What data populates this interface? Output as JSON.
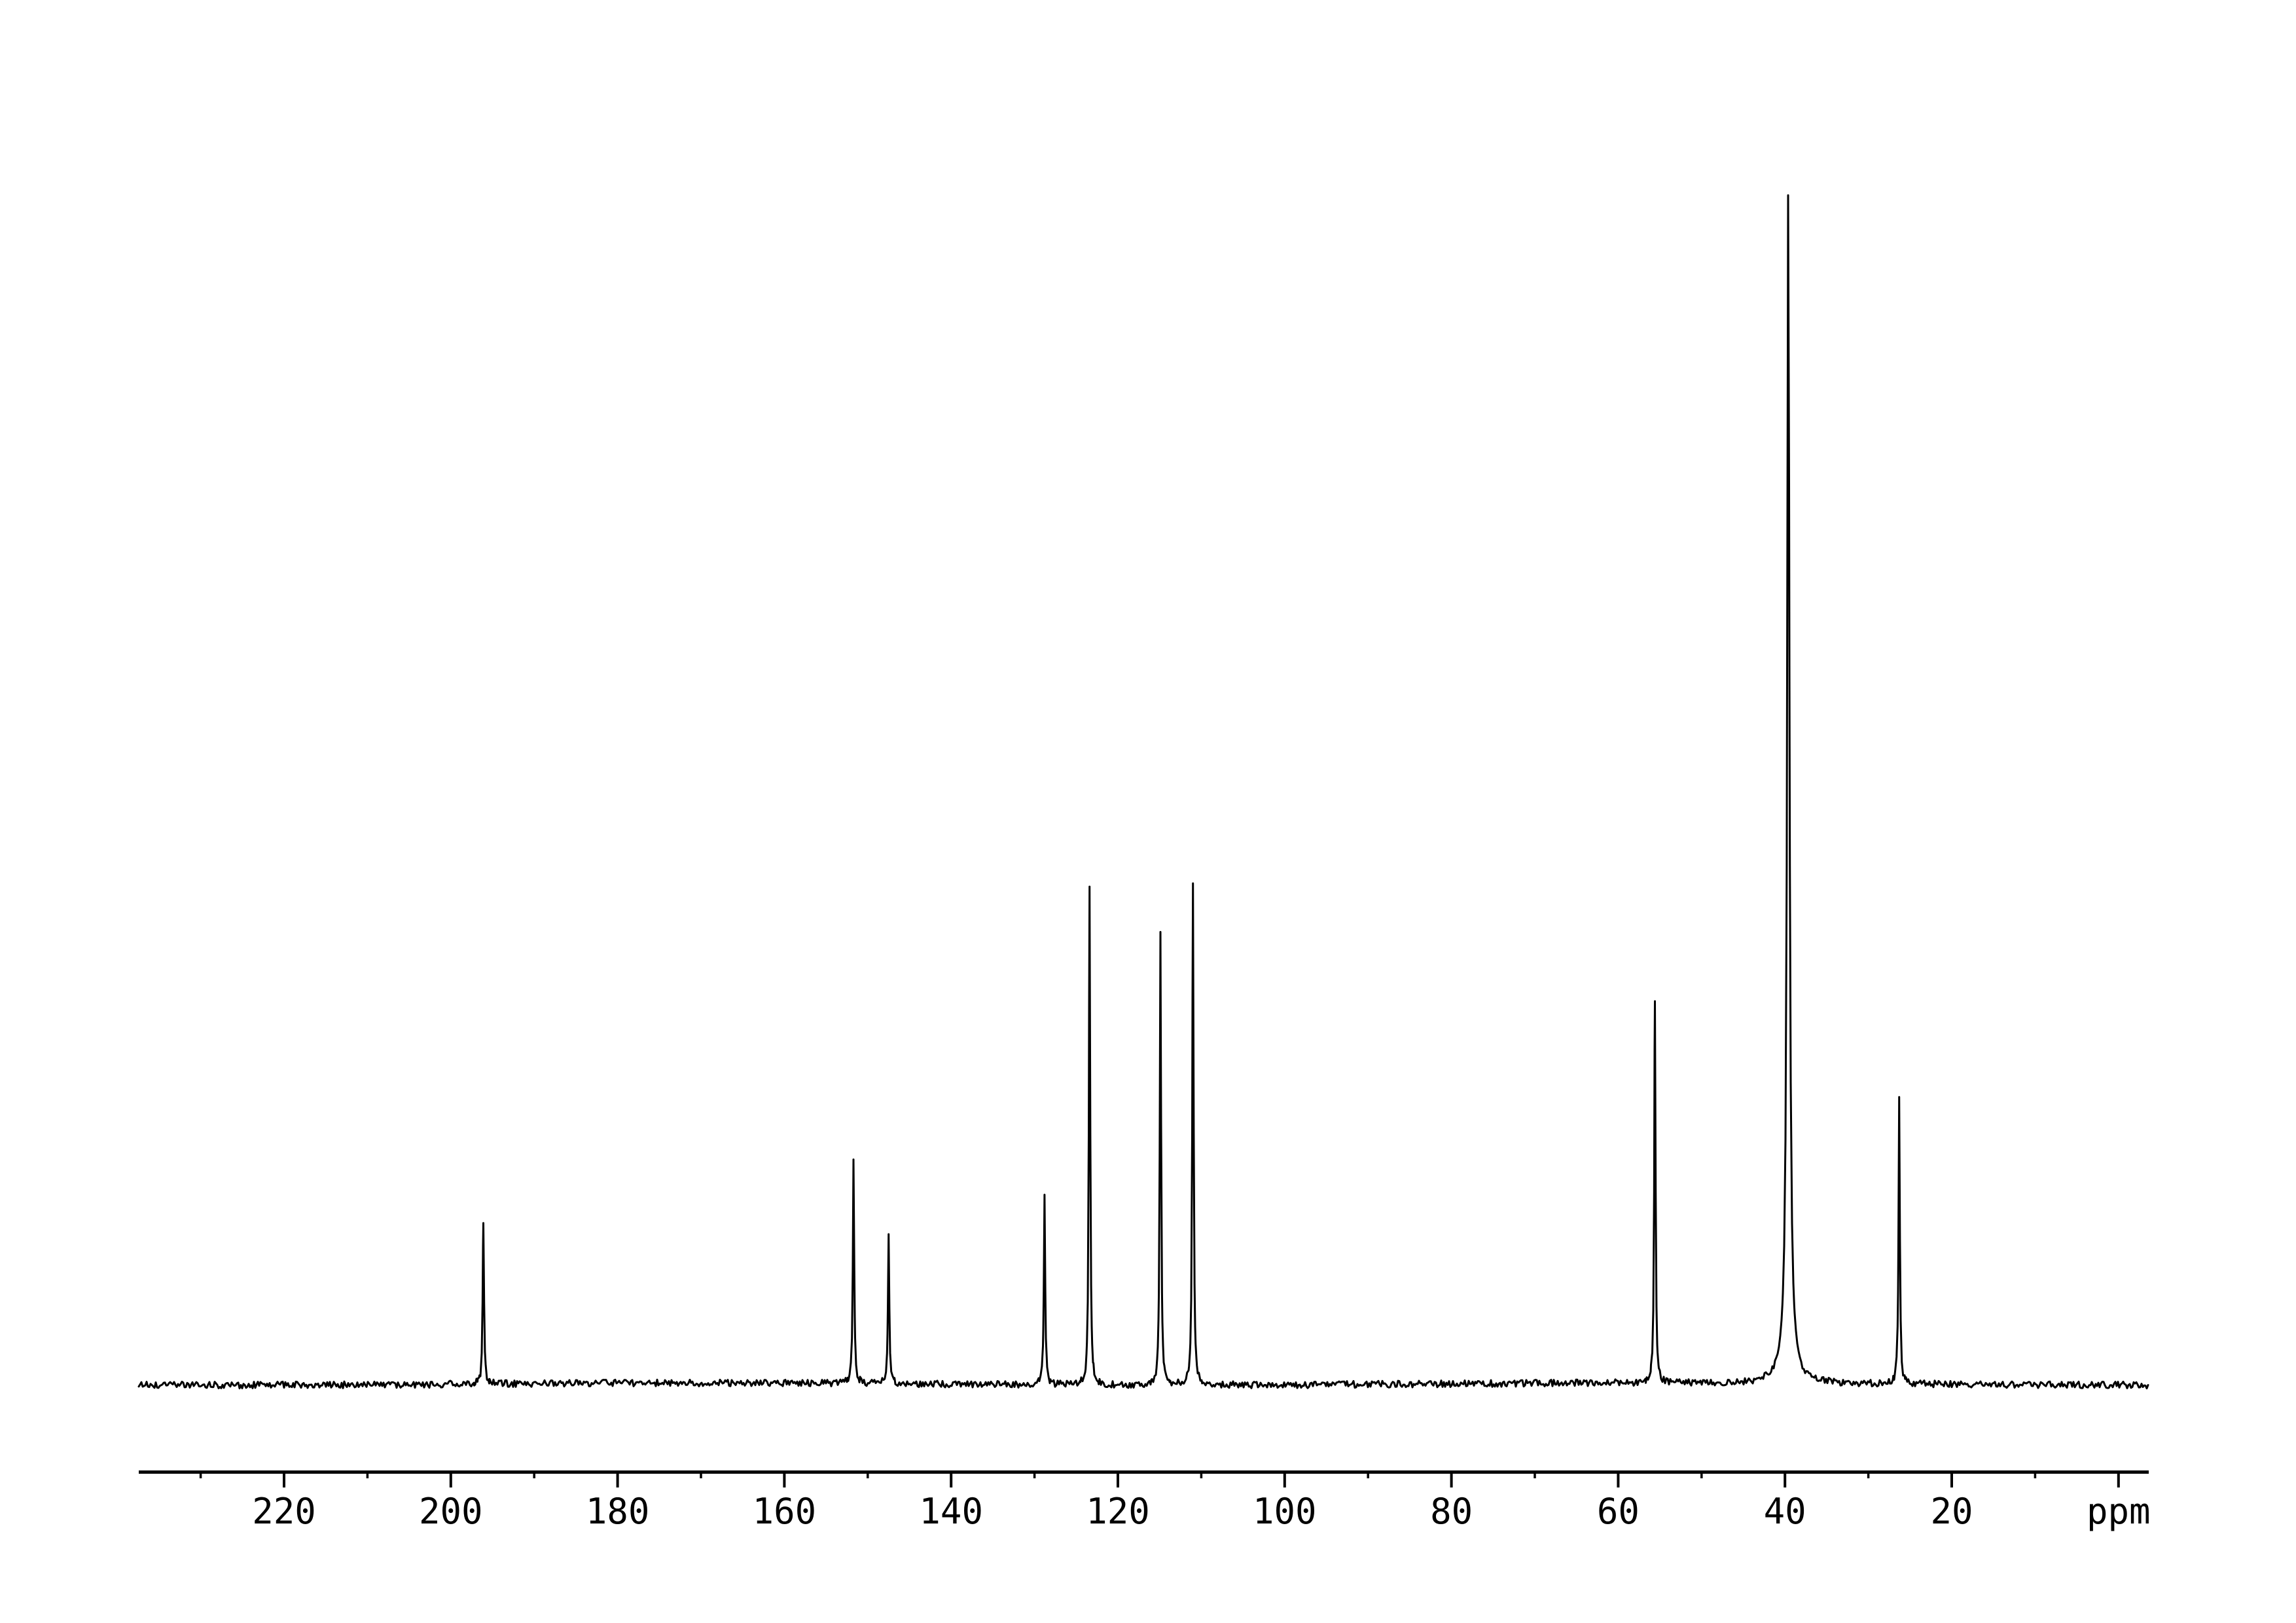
{
  "figure": {
    "background_color": "#ffffff",
    "trace_color": "#000000",
    "axis_color": "#000000"
  },
  "chart_data": {
    "type": "line",
    "subtype": "13C NMR spectrum trace",
    "xlabel": "ppm",
    "x_axis_reversed": true,
    "x_range_ppm": [
      237,
      -4
    ],
    "grid": "off",
    "legend": "none",
    "ticks": [
      {
        "ppm": 220,
        "label": "220"
      },
      {
        "ppm": 200,
        "label": "200"
      },
      {
        "ppm": 180,
        "label": "180"
      },
      {
        "ppm": 160,
        "label": "160"
      },
      {
        "ppm": 140,
        "label": "140"
      },
      {
        "ppm": 120,
        "label": "120"
      },
      {
        "ppm": 100,
        "label": "100"
      },
      {
        "ppm": 80,
        "label": "80"
      },
      {
        "ppm": 60,
        "label": "60"
      },
      {
        "ppm": 40,
        "label": "40"
      },
      {
        "ppm": 20,
        "label": "20"
      },
      {
        "ppm": 0,
        "label": "ppm"
      }
    ],
    "minor_ticks_ppm": [
      230,
      210,
      190,
      170,
      150,
      130,
      110,
      90,
      70,
      50,
      30,
      10
    ],
    "peaks": [
      {
        "ppm": 196.1,
        "intensity": 0.138
      },
      {
        "ppm": 151.7,
        "intensity": 0.194
      },
      {
        "ppm": 147.5,
        "intensity": 0.127
      },
      {
        "ppm": 128.8,
        "intensity": 0.161
      },
      {
        "ppm": 123.4,
        "intensity": 0.424
      },
      {
        "ppm": 114.9,
        "intensity": 0.386
      },
      {
        "ppm": 111.0,
        "intensity": 0.427
      },
      {
        "ppm": 55.6,
        "intensity": 0.327
      },
      {
        "ppm": 39.6,
        "intensity": 1.0,
        "broad": true
      },
      {
        "ppm": 26.3,
        "intensity": 0.244
      }
    ],
    "intensity_note": "intensities normalized to tallest peak = 1.0"
  }
}
